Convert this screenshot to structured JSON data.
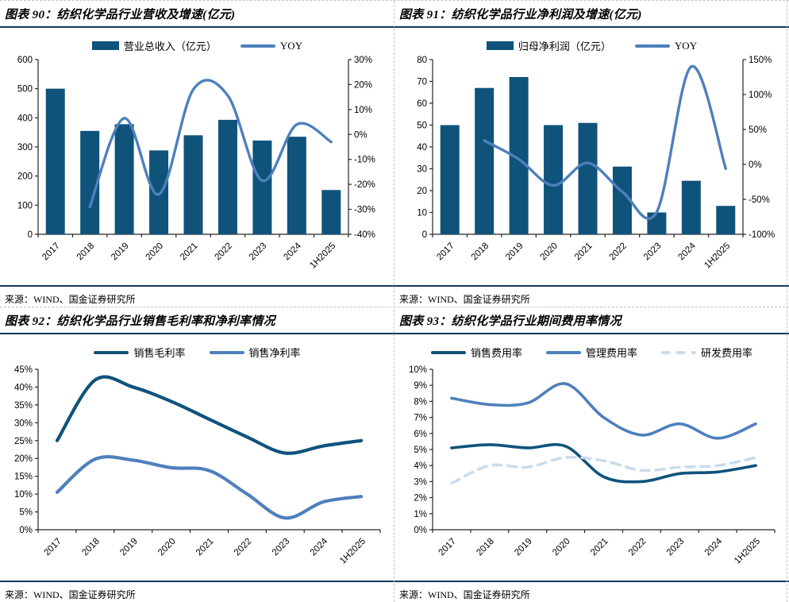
{
  "theme": {
    "rule_color": "#17375E",
    "divider_color": "#C4C4C4",
    "axis_color": "#262626",
    "dark_series_color": "#0F537B",
    "medium_series_color": "#4E80BC",
    "light_series_color": "#C9DCEE"
  },
  "chart_data": [
    {
      "id": "figure-90",
      "type": "bar-line",
      "title": "图表 90：纺织化学品行业营收及增速(亿元)",
      "source": "来源：WIND、国金证券研究所",
      "categories": [
        "2017",
        "2018",
        "2019",
        "2020",
        "2021",
        "2022",
        "2023",
        "2024",
        "1H2025"
      ],
      "bar": {
        "name": "营业总收入（亿元）",
        "color": "#0F537B",
        "values": [
          500,
          355,
          378,
          288,
          340,
          393,
          322,
          335,
          152
        ]
      },
      "line": {
        "name": "YOY",
        "color": "#4E80BC",
        "values": [
          null,
          -29,
          6.5,
          -24,
          18,
          15.6,
          -18.5,
          4,
          -3
        ]
      },
      "left_axis": {
        "min": 0,
        "max": 600,
        "step": 100,
        "suffix": ""
      },
      "right_axis": {
        "min": -40,
        "max": 30,
        "step": 10,
        "suffix": "%"
      },
      "legend_position": "top",
      "grid": false
    },
    {
      "id": "figure-91",
      "type": "bar-line",
      "title": "图表 91：纺织化学品行业净利润及增速(亿元)",
      "source": "来源：WIND、国金证券研究所",
      "categories": [
        "2017",
        "2018",
        "2019",
        "2020",
        "2021",
        "2022",
        "2023",
        "2024",
        "1H2025"
      ],
      "bar": {
        "name": "归母净利润（亿元）",
        "color": "#0F537B",
        "values": [
          50,
          67,
          72,
          50,
          51,
          31,
          10,
          24.5,
          13
        ]
      },
      "line": {
        "name": "YOY",
        "color": "#4E80BC",
        "values": [
          null,
          34,
          7.5,
          -30,
          2,
          -39,
          -68,
          140,
          -6
        ]
      },
      "left_axis": {
        "min": 0,
        "max": 80,
        "step": 10,
        "suffix": ""
      },
      "right_axis": {
        "min": -100,
        "max": 150,
        "step": 50,
        "suffix": "%"
      },
      "legend_position": "top",
      "grid": false
    },
    {
      "id": "figure-92",
      "type": "lines",
      "title": "图表 92：纺织化学品行业销售毛利率和净利率情况",
      "source": "来源：WIND、国金证券研究所",
      "categories": [
        "2017",
        "2018",
        "2019",
        "2020",
        "2021",
        "2022",
        "2023",
        "2024",
        "1H2025"
      ],
      "series": [
        {
          "name": "销售毛利率",
          "color": "#0F537B",
          "width": 4.2,
          "values": [
            25,
            42,
            40,
            36,
            31,
            26,
            21.5,
            23.5,
            25
          ]
        },
        {
          "name": "销售净利率",
          "color": "#4E80BC",
          "width": 4.2,
          "values": [
            10.5,
            19.8,
            19.5,
            17.4,
            16.6,
            10,
            3.3,
            7.8,
            9.3
          ]
        }
      ],
      "left_axis": {
        "min": 0,
        "max": 45,
        "step": 5,
        "suffix": "%"
      },
      "legend_position": "top",
      "grid": false
    },
    {
      "id": "figure-93",
      "type": "lines",
      "title": "图表 93：纺织化学品行业期间费用率情况",
      "source": "来源：WIND、国金证券研究所",
      "categories": [
        "2017",
        "2018",
        "2019",
        "2020",
        "2021",
        "2022",
        "2023",
        "2024",
        "1H2025"
      ],
      "series": [
        {
          "name": "销售费用率",
          "color": "#0F537B",
          "width": 3.6,
          "values": [
            5.1,
            5.3,
            5.1,
            5.2,
            3.3,
            3.0,
            3.5,
            3.6,
            4.0
          ]
        },
        {
          "name": "管理费用率",
          "color": "#4E80BC",
          "width": 3.6,
          "values": [
            8.2,
            7.8,
            7.9,
            9.1,
            7.0,
            5.9,
            6.6,
            5.7,
            6.6
          ]
        },
        {
          "name": "研发费用率",
          "color": "#C9DCEE",
          "width": 3.6,
          "dash": "11 8",
          "values": [
            2.9,
            4.0,
            3.9,
            4.5,
            4.3,
            3.7,
            3.9,
            4.0,
            4.5
          ]
        }
      ],
      "left_axis": {
        "min": 0,
        "max": 10,
        "step": 1,
        "suffix": "%"
      },
      "legend_position": "top",
      "grid": false
    }
  ]
}
